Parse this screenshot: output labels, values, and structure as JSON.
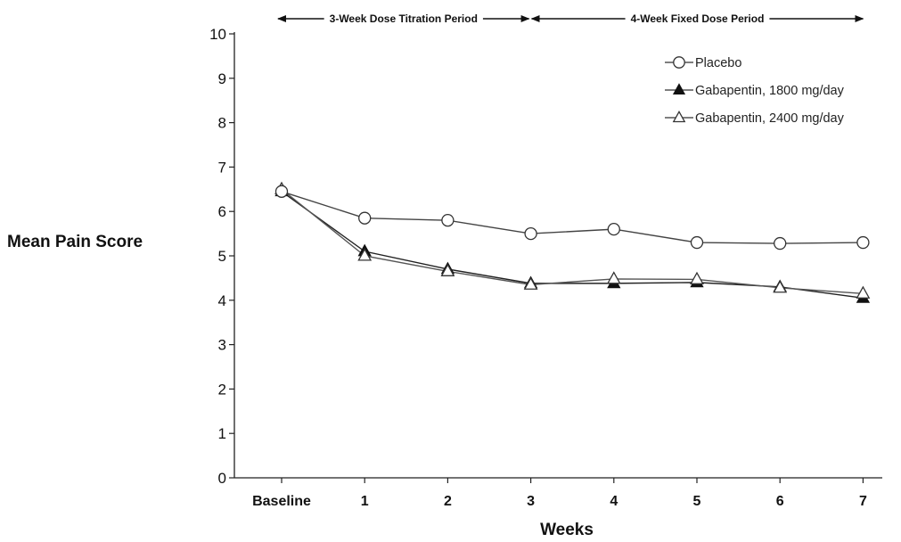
{
  "chart_data": {
    "type": "line",
    "title": "",
    "xlabel": "Weeks",
    "ylabel": "Mean Pain Score",
    "categories": [
      "Baseline",
      "1",
      "2",
      "3",
      "4",
      "5",
      "6",
      "7"
    ],
    "ylim": [
      0,
      10
    ],
    "yticks": [
      "0",
      "1",
      "2",
      "3",
      "4",
      "5",
      "6",
      "7",
      "8",
      "9",
      "10"
    ],
    "grid": false,
    "legend_position": "top-right",
    "series": [
      {
        "name": "Placebo",
        "marker": "open-circle",
        "values": [
          6.45,
          5.85,
          5.8,
          5.5,
          5.6,
          5.3,
          5.28,
          5.3
        ]
      },
      {
        "name": "Gabapentin, 1800 mg/day",
        "marker": "filled-triangle",
        "values": [
          6.45,
          5.1,
          4.7,
          4.38,
          4.38,
          4.4,
          4.3,
          4.05
        ]
      },
      {
        "name": "Gabapentin, 2400 mg/day",
        "marker": "open-triangle",
        "values": [
          6.5,
          5.0,
          4.65,
          4.35,
          4.48,
          4.47,
          4.28,
          4.15
        ]
      }
    ],
    "periods": [
      {
        "label": "3-Week Dose Titration Period",
        "from": "Baseline",
        "to": "3"
      },
      {
        "label": "4-Week Fixed Dose Period",
        "from": "3",
        "to": "7"
      }
    ]
  }
}
